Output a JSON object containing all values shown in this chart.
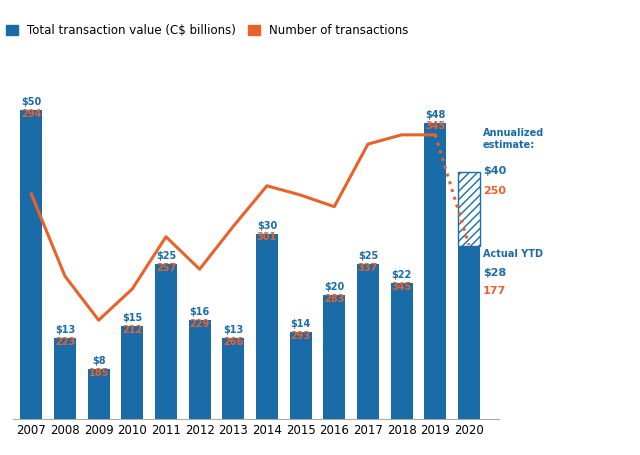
{
  "years": [
    2007,
    2008,
    2009,
    2010,
    2011,
    2012,
    2013,
    2014,
    2015,
    2016,
    2017,
    2018,
    2019
  ],
  "bar_values": [
    50,
    13,
    8,
    15,
    25,
    16,
    13,
    30,
    14,
    20,
    25,
    22,
    48
  ],
  "line_values": [
    294,
    223,
    185,
    212,
    257,
    229,
    266,
    301,
    293,
    283,
    337,
    345,
    345
  ],
  "bar_labels_dollar": [
    "$50",
    "$13",
    "$8",
    "$15",
    "$25",
    "$16",
    "$13",
    "$30",
    "$14",
    "$20",
    "$25",
    "$22",
    "$48"
  ],
  "line_labels": [
    "294",
    "223",
    "185",
    "212",
    "257",
    "229",
    "266",
    "301",
    "293",
    "283",
    "337",
    "345",
    "345"
  ],
  "actual_ytd_bar": 28,
  "actual_ytd_line": 177,
  "annualized_bar": 40,
  "annualized_line": 250,
  "bar_color": "#1A6CA8",
  "line_color": "#E8622A",
  "background_color": "#FFFFFF",
  "legend_label_bar": "Total transaction value (C$ billions)",
  "legend_label_line": "Number of transactions",
  "text_color_blue": "#1A6CA8",
  "text_color_orange": "#E8622A",
  "ylim_bar_max": 62,
  "ylim_line_min": 100,
  "ylim_line_max": 430
}
